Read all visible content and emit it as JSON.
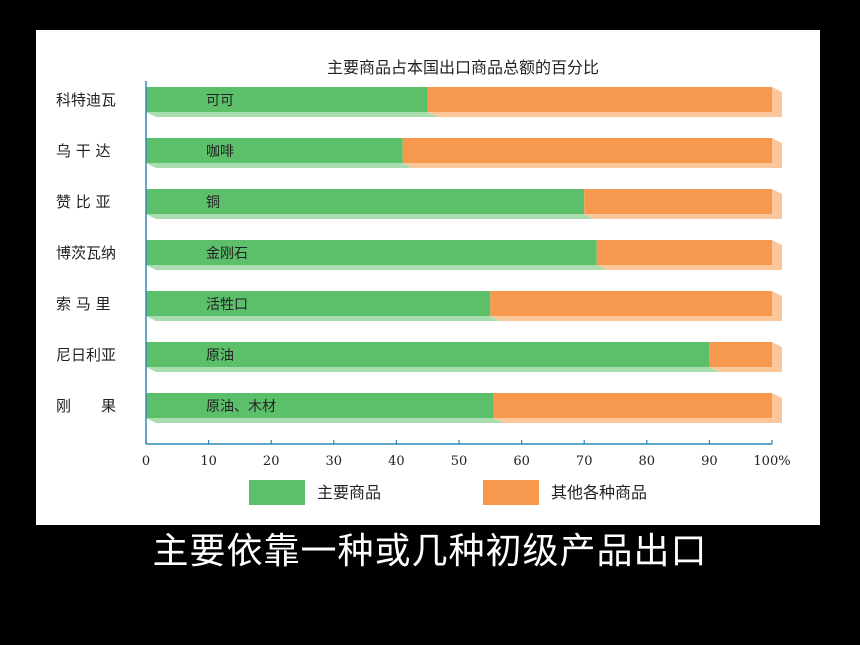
{
  "caption": "主要依靠一种或几种初级产品出口",
  "colors": {
    "main": "#5cbf6a",
    "main_shadow": "#a9dcae",
    "other": "#f7984f",
    "other_shadow": "#fbc79a",
    "axis": "#2b8ab8"
  },
  "chart_data": {
    "type": "bar",
    "orientation": "horizontal",
    "stacked": true,
    "title": "主要商品占本国出口商品总额的百分比",
    "categories": [
      "科特迪瓦",
      "乌 干 达",
      "赞 比 亚",
      "博茨瓦纳",
      "索 马 里",
      "尼日利亚",
      "刚　　果"
    ],
    "bar_labels": [
      "可可",
      "咖啡",
      "铜",
      "金刚石",
      "活牲口",
      "原油",
      "原油、木材"
    ],
    "series": [
      {
        "name": "主要商品",
        "values": [
          45,
          41,
          70,
          72,
          55,
          90,
          55.5
        ]
      },
      {
        "name": "其他各种商品",
        "values": [
          55,
          59,
          30,
          28,
          45,
          10,
          44.5
        ]
      }
    ],
    "x_ticks": [
      "0",
      "10",
      "20",
      "30",
      "40",
      "50",
      "60",
      "70",
      "80",
      "90",
      "100%"
    ],
    "xlim": [
      0,
      100
    ],
    "grid": false,
    "legend_position": "bottom"
  }
}
